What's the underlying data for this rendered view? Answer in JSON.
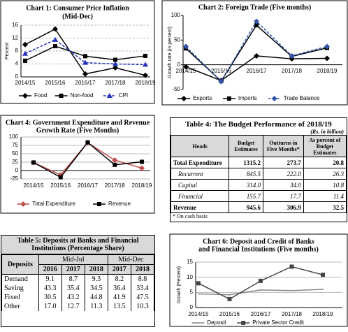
{
  "chart_data": [
    {
      "type": "line",
      "title": [
        "Chart 1: Consumer Price Inflation",
        "(Mid-Dec)"
      ],
      "y_label": "Percent",
      "categories": [
        "2014/15",
        "2015/16",
        "2016/17",
        "2017/18",
        "2018/19"
      ],
      "series": [
        {
          "name": "Food",
          "color": "#000000",
          "marker": "diamond",
          "values": [
            10,
            14.8,
            0.9,
            2.8,
            0.5
          ]
        },
        {
          "name": "Non-food",
          "color": "#000000",
          "marker": "square",
          "values": [
            5,
            9.5,
            6.4,
            5.3,
            6.5
          ]
        },
        {
          "name": "CPI",
          "color": "#2233bb",
          "marker": "triangle",
          "dashed": true,
          "values": [
            7.2,
            11.5,
            4.4,
            4,
            3.8
          ]
        }
      ],
      "ylim": [
        0,
        16
      ],
      "yticks": [
        0,
        4,
        8,
        12,
        16
      ],
      "grid": true,
      "legend": "bottom"
    },
    {
      "type": "line",
      "title": [
        "Chart 2: Foreign Trade (Five months)"
      ],
      "y_label": "Growth rate (in percent)",
      "categories": [
        "2014/15",
        "2015/16",
        "2016/17",
        "2017/18",
        "2018/19"
      ],
      "series": [
        {
          "name": "Exports",
          "color": "#000000",
          "marker": "diamond",
          "values": [
            -4,
            -32,
            18,
            12,
            13
          ]
        },
        {
          "name": "Imports",
          "color": "#000000",
          "marker": "square",
          "values": [
            33,
            -33,
            80,
            17,
            34
          ]
        },
        {
          "name": "Trade Balance",
          "color": "#3355aa",
          "marker": "diamond",
          "dashed": true,
          "values": [
            37,
            -34,
            88,
            18,
            37
          ]
        }
      ],
      "ylim": [
        -50,
        100
      ],
      "yticks": [
        -50,
        0,
        50,
        100
      ],
      "grid": false,
      "legend": "bottom"
    },
    {
      "type": "line",
      "title": [
        "Chart 4: Government Expenditure and Revenue",
        "Growth Rate (Five Months)"
      ],
      "categories": [
        "2014/15",
        "2015/16",
        "2016/17",
        "2017/18",
        "2018/19"
      ],
      "series": [
        {
          "name": "Total Expenditure",
          "color": "#c0504d",
          "marker": "diamond",
          "values": [
            24,
            -13,
            83,
            31,
            7
          ]
        },
        {
          "name": "Revenue",
          "color": "#000000",
          "marker": "square",
          "values": [
            24,
            -20,
            84,
            17,
            26
          ]
        }
      ],
      "ylim": [
        -25,
        100
      ],
      "yticks": [
        -25,
        0,
        25,
        50,
        75,
        100
      ],
      "grid": true,
      "legend": "bottom"
    },
    {
      "type": "line",
      "title": [
        "Chart 6:  Deposit and Credit of Banks",
        "and Financial Institutions (Five months)"
      ],
      "y_label": "Growth (Percent)",
      "categories": [
        "2014/15",
        "2015/16",
        "2016/17",
        "2017/18",
        "2018/19"
      ],
      "series": [
        {
          "name": "Deposit",
          "color": "#888888",
          "marker": "none",
          "values": [
            4.5,
            4.2,
            5.8,
            5.6,
            6
          ]
        },
        {
          "name": "Private Sector Credit",
          "color": "#444444",
          "marker": "square",
          "values": [
            8,
            2.8,
            8.8,
            13.5,
            10.8
          ]
        }
      ],
      "ylim": [
        0,
        15
      ],
      "yticks": [
        0,
        5,
        10,
        15
      ],
      "grid": true,
      "legend": "bottom"
    }
  ],
  "table4": {
    "title": "Table 4: The Budget Performance of 2018/19",
    "unit": "(Rs. in billion)",
    "headers": [
      "Heads",
      "Budget Estimates",
      "Outturns in Five Months*",
      "As percent of Budget Estimates"
    ],
    "rows": [
      [
        "Total Expenditure",
        "1315.2",
        "273.7",
        "20.8"
      ],
      [
        "Recurrent",
        "845.5",
        "222.0",
        "26.3"
      ],
      [
        "Capital",
        "314.0",
        "34.0",
        "10.8"
      ],
      [
        "Financial",
        "155.7",
        "17.7",
        "11.4"
      ],
      [
        "Revenue",
        "945.6",
        "306.9",
        "32.5"
      ]
    ],
    "note": "*  On cash basis"
  },
  "table5": {
    "title": "Table 5: Deposits at Banks and Financial Institutions (Percentage Share)",
    "first_header": "Deposits",
    "groups": [
      "Mid-Jul",
      "Mid-Dec"
    ],
    "years": [
      "2016",
      "2017",
      "2018",
      "2017",
      "2018"
    ],
    "rows": [
      [
        "Demand",
        "9.1",
        "8.7",
        "9.3",
        "8.2",
        "8.8"
      ],
      [
        "Saving",
        "43.3",
        "35.4",
        "34.5",
        "36.4",
        "33.4"
      ],
      [
        "Fixed",
        "30.5",
        "43.2",
        "44.8",
        "41.9",
        "47.5"
      ],
      [
        "Other",
        "17.0",
        "12.7",
        "11.3",
        "13.5",
        "10.3"
      ]
    ]
  }
}
